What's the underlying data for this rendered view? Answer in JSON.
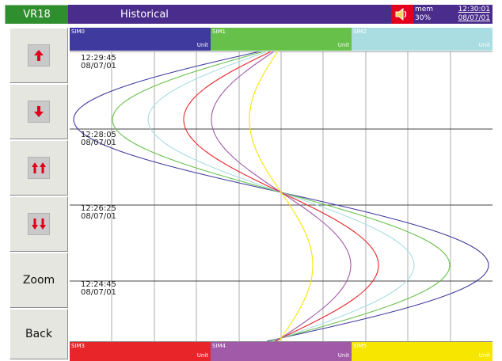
{
  "header": {
    "device": "VR18",
    "title": "Historical",
    "mem_label": "mem",
    "mem_value": "30%",
    "time": "12:30:01",
    "date": "08/07/01"
  },
  "colors": {
    "device_bg": "#2f8f2f",
    "title_bg": "#4a2c8c",
    "status_bg": "#4a2c8c",
    "alarm_bg": "#e3001b",
    "sim0": "#3f3a9e",
    "sim1": "#67c04a",
    "sim2": "#a9dde2",
    "sim3": "#e8262a",
    "sim4": "#a05aa8",
    "sim5": "#f7e600"
  },
  "channels_top": [
    {
      "name": "SIM0",
      "unit": "Unit"
    },
    {
      "name": "SIM1",
      "unit": "Unit"
    },
    {
      "name": "SIM2",
      "unit": "Unit"
    }
  ],
  "channels_bottom": [
    {
      "name": "SIM3",
      "unit": "Unit"
    },
    {
      "name": "SIM4",
      "unit": "Unit"
    },
    {
      "name": "SIM5",
      "unit": "Unit"
    }
  ],
  "buttons": {
    "scroll_up": "up-arrow-icon",
    "scroll_down": "down-arrow-icon",
    "page_up": "double-up-arrow-icon",
    "page_down": "double-down-arrow-icon",
    "zoom": "Zoom",
    "back": "Back"
  },
  "timestamps": [
    {
      "time": "12:29:45",
      "date": "08/07/01"
    },
    {
      "time": "12:28:05",
      "date": "08/07/01"
    },
    {
      "time": "12:26:25",
      "date": "08/07/01"
    },
    {
      "time": "12:24:45",
      "date": "08/07/01"
    }
  ]
}
